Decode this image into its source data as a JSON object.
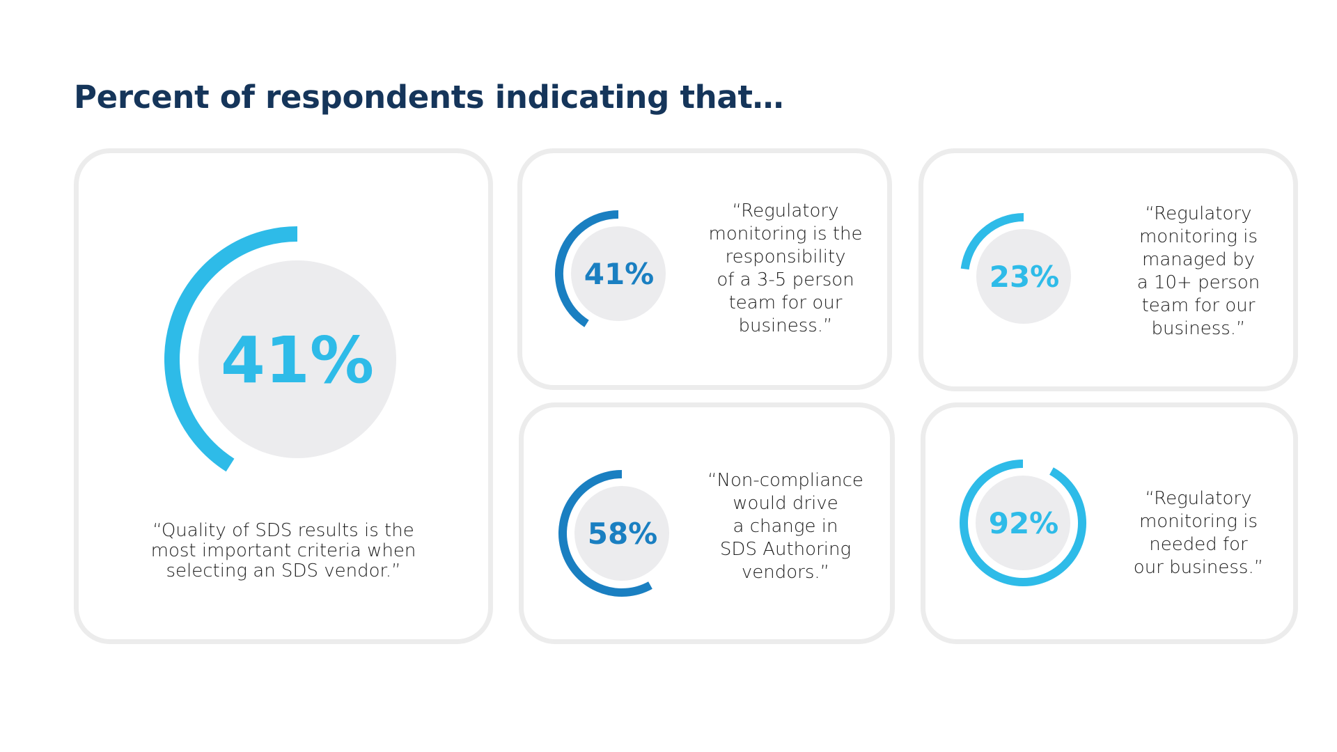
{
  "title": "Percent of respondents indicating that…",
  "colors": {
    "title": "#15355a",
    "light_blue": "#2ebbe8",
    "dark_blue": "#1a7fc1",
    "disk_gray": "#ececee",
    "card_border": "#ececec",
    "quote_text": "#1c1c1c"
  },
  "cards": [
    {
      "id": "quality-sds",
      "percent_label": "41%",
      "percent": 41,
      "color": "#2ebbe8",
      "quote": "“Quality of SDS results is the\nmost important criteria when\nselecting an SDS vendor.”"
    },
    {
      "id": "team-3-5",
      "percent_label": "41%",
      "percent": 41,
      "color": "#1a7fc1",
      "quote": "“Regulatory\nmonitoring is the\nresponsibility\nof a 3-5 person\nteam for our\nbusiness.”"
    },
    {
      "id": "team-10-plus",
      "percent_label": "23%",
      "percent": 23,
      "color": "#2ebbe8",
      "quote": "“Regulatory\nmonitoring is\nmanaged by\na 10+ person\nteam for our\nbusiness.”"
    },
    {
      "id": "non-compliance",
      "percent_label": "58%",
      "percent": 58,
      "color": "#1a7fc1",
      "quote": "“Non-compliance\nwould drive\na change in\nSDS Authoring\nvendors.”"
    },
    {
      "id": "monitoring-needed",
      "percent_label": "92%",
      "percent": 92,
      "color": "#2ebbe8",
      "quote": "“Regulatory\nmonitoring is\nneeded for\nour business.”"
    }
  ],
  "chart_data": {
    "type": "pie",
    "title": "Percent of respondents indicating that…",
    "subtype": "radial-progress",
    "categories": [
      "Quality of SDS results is the most important criteria when selecting an SDS vendor.",
      "Regulatory monitoring is the responsibility of a 3-5 person team for our business.",
      "Regulatory monitoring is managed by a 10+ person team for our business.",
      "Non-compliance would drive a change in SDS Authoring vendors.",
      "Regulatory monitoring is needed for our business."
    ],
    "values": [
      41,
      41,
      23,
      58,
      92
    ],
    "unit": "%",
    "ylim": [
      0,
      100
    ],
    "legend": "none",
    "grid": false
  }
}
